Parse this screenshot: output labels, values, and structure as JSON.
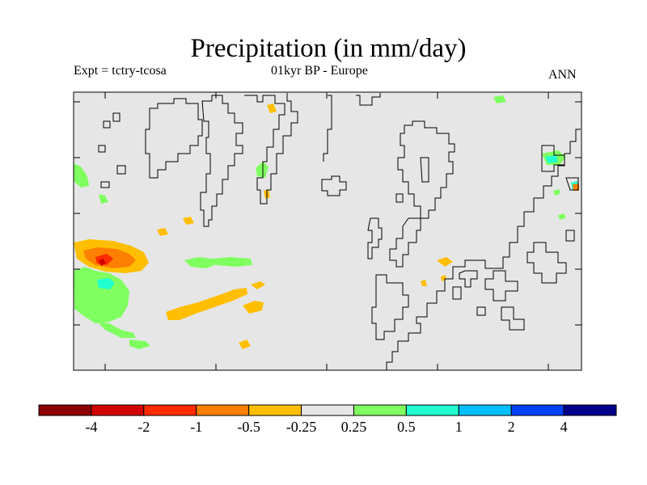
{
  "title": "Precipitation (in mm/day)",
  "subtitle_left": "Expt = tctry-tcosa",
  "subtitle_center": "01kyr BP - Europe",
  "subtitle_right": "ANN",
  "map": {
    "region": "Europe",
    "field": "Precipitation anomaly",
    "units": "mm/day",
    "background_color": "#e6e6e6"
  },
  "colorbar": {
    "colors": [
      "#8b0000",
      "#d20000",
      "#ff2a00",
      "#ff7f00",
      "#ffbf00",
      "#e6e6e6",
      "#80ff60",
      "#20ffd0",
      "#00bfff",
      "#0040ff",
      "#00008b"
    ],
    "labels": [
      "-4",
      "-2",
      "-1",
      "-0.5",
      "-0.25",
      "0.25",
      "0.5",
      "1",
      "2",
      "4"
    ]
  }
}
